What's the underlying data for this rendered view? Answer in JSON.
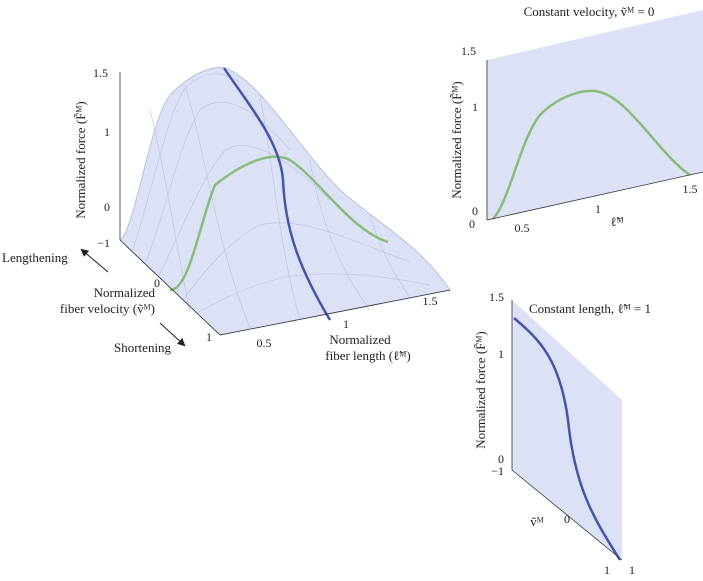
{
  "main_panel": {
    "force_label": "Normalized force (F̃ᴹ)",
    "force_ticks": [
      "1.5",
      "1",
      "0"
    ],
    "velocity_ticks": [
      "−1",
      "0",
      "1"
    ],
    "length_ticks": [
      "0.5",
      "1",
      "1.5"
    ],
    "lengthening": "Lengthening",
    "shortening": "Shortening",
    "velocity_label": [
      "Normalized",
      "fiber velocity (ṽᴹ)"
    ],
    "length_label": [
      "Normalized",
      "fiber length (ℓ̃ᴹ)"
    ]
  },
  "velocity_panel": {
    "title": "Constant velocity, ṽᴹ = 0",
    "force_label": "Normalized force (F̃ᴹ)",
    "force_ticks": [
      "1.5",
      "1",
      "0"
    ],
    "length_ticks": [
      "0",
      "0.5",
      "1",
      "1.5"
    ],
    "length_label": "ℓ̃ᴹ"
  },
  "length_panel": {
    "title": "Constant length, ℓ̃ᴹ = 1",
    "force_label": "Normalized force (F̃ᴹ)",
    "force_ticks": [
      "1.5",
      "1",
      "0"
    ],
    "velocity_ticks": [
      "−1",
      "0",
      "1"
    ],
    "length_tick": "1",
    "velocity_label": "ṽᴹ"
  }
}
